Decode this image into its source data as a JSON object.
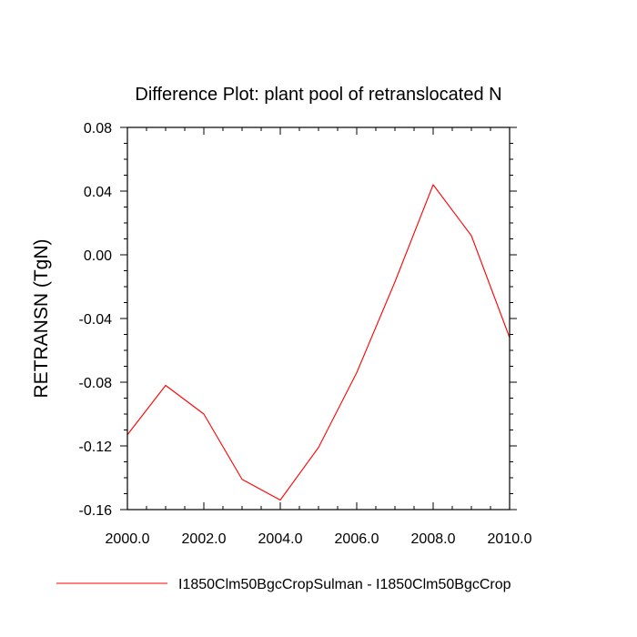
{
  "chart_data": {
    "type": "line",
    "title": "Difference Plot: plant pool of retranslocated N",
    "xlabel": "",
    "ylabel": "RETRANSN  (TgN)",
    "xlim": [
      2000,
      2010
    ],
    "ylim": [
      -0.16,
      0.08
    ],
    "x_ticks": [
      2000,
      2002,
      2004,
      2006,
      2008,
      2010
    ],
    "x_tick_labels": [
      "2000.0",
      "2002.0",
      "2004.0",
      "2006.0",
      "2008.0",
      "2010.0"
    ],
    "y_ticks": [
      -0.16,
      -0.12,
      -0.08,
      -0.04,
      0.0,
      0.04,
      0.08
    ],
    "y_tick_labels": [
      "-0.16",
      "-0.12",
      "-0.08",
      "-0.04",
      "0.00",
      "0.04",
      "0.08"
    ],
    "grid": false,
    "legend_position": "bottom",
    "series": [
      {
        "name": "I1850Clm50BgcCropSulman - I1850Clm50BgcCrop",
        "color": "#ff0000",
        "x": [
          2000,
          2001,
          2002,
          2003,
          2004,
          2005,
          2006,
          2007,
          2008,
          2009,
          2010
        ],
        "y": [
          -0.113,
          -0.082,
          -0.1,
          -0.141,
          -0.154,
          -0.121,
          -0.074,
          -0.017,
          0.044,
          0.012,
          -0.052
        ]
      }
    ]
  }
}
